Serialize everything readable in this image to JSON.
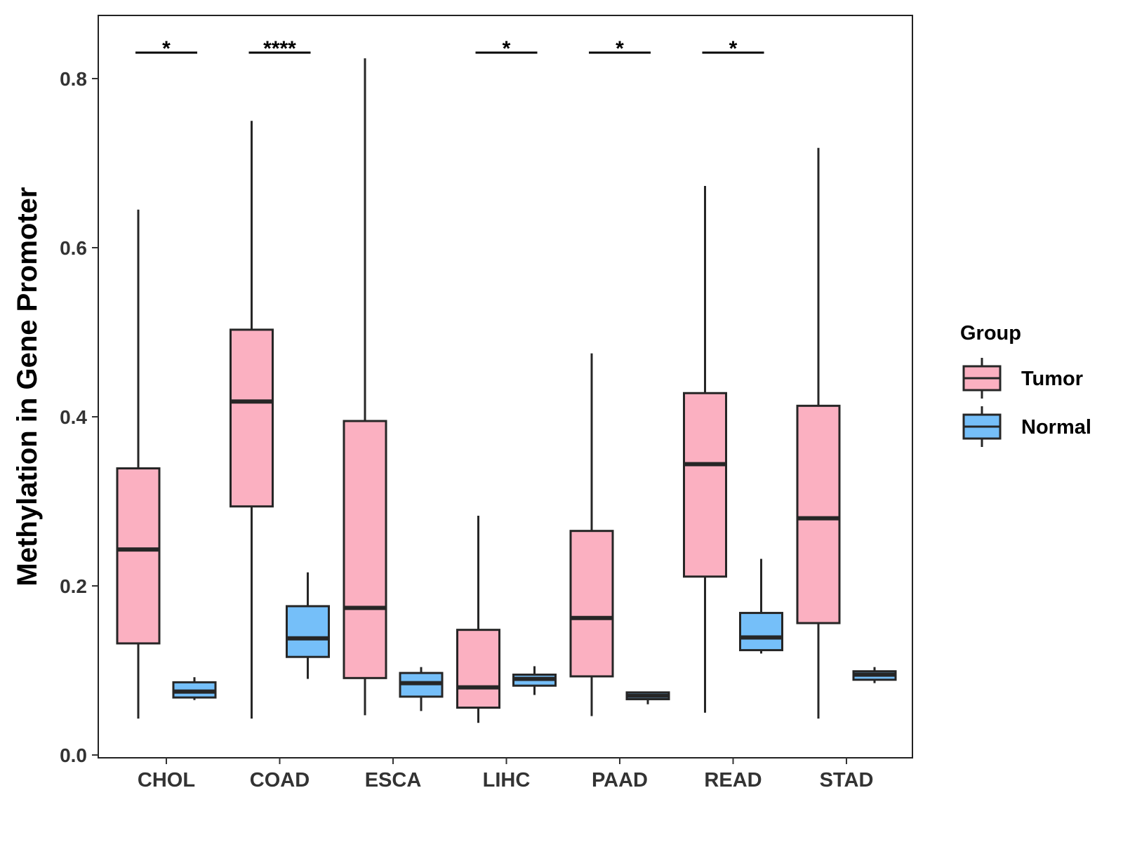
{
  "chart_data": {
    "type": "boxplot",
    "title": "",
    "xlabel": "",
    "ylabel": "Methylation in Gene Promoter",
    "ylim": [
      0,
      0.87
    ],
    "yticks": [
      "0.0",
      "0.2",
      "0.4",
      "0.6",
      "0.8"
    ],
    "ytick_values": [
      0.0,
      0.2,
      0.4,
      0.6,
      0.8
    ],
    "grid": false,
    "categories": [
      "CHOL",
      "COAD",
      "ESCA",
      "LIHC",
      "PAAD",
      "READ",
      "STAD"
    ],
    "legend": {
      "title": "Group",
      "position": "right",
      "entries": [
        "Tumor",
        "Normal"
      ]
    },
    "series": [
      {
        "name": "Tumor",
        "color": "#FBB0C1",
        "boxes": [
          {
            "category": "CHOL",
            "min": 0.043,
            "q1": 0.132,
            "median": 0.243,
            "q3": 0.339,
            "max": 0.645
          },
          {
            "category": "COAD",
            "min": 0.043,
            "q1": 0.294,
            "median": 0.418,
            "q3": 0.503,
            "max": 0.75
          },
          {
            "category": "ESCA",
            "min": 0.047,
            "q1": 0.091,
            "median": 0.174,
            "q3": 0.395,
            "max": 0.824
          },
          {
            "category": "LIHC",
            "min": 0.038,
            "q1": 0.056,
            "median": 0.08,
            "q3": 0.148,
            "max": 0.283
          },
          {
            "category": "PAAD",
            "min": 0.046,
            "q1": 0.093,
            "median": 0.162,
            "q3": 0.265,
            "max": 0.475
          },
          {
            "category": "READ",
            "min": 0.05,
            "q1": 0.211,
            "median": 0.344,
            "q3": 0.428,
            "max": 0.673
          },
          {
            "category": "STAD",
            "min": 0.043,
            "q1": 0.156,
            "median": 0.28,
            "q3": 0.413,
            "max": 0.718
          }
        ]
      },
      {
        "name": "Normal",
        "color": "#75BFF9",
        "boxes": [
          {
            "category": "CHOL",
            "min": 0.065,
            "q1": 0.068,
            "median": 0.075,
            "q3": 0.086,
            "max": 0.092
          },
          {
            "category": "COAD",
            "min": 0.09,
            "q1": 0.116,
            "median": 0.138,
            "q3": 0.176,
            "max": 0.216
          },
          {
            "category": "ESCA",
            "min": 0.052,
            "q1": 0.069,
            "median": 0.085,
            "q3": 0.097,
            "max": 0.104
          },
          {
            "category": "LIHC",
            "min": 0.071,
            "q1": 0.082,
            "median": 0.09,
            "q3": 0.095,
            "max": 0.105
          },
          {
            "category": "PAAD",
            "min": 0.06,
            "q1": 0.066,
            "median": 0.07,
            "q3": 0.074,
            "max": 0.075
          },
          {
            "category": "READ",
            "min": 0.12,
            "q1": 0.124,
            "median": 0.139,
            "q3": 0.168,
            "max": 0.232
          },
          {
            "category": "STAD",
            "min": 0.085,
            "q1": 0.089,
            "median": 0.095,
            "q3": 0.099,
            "max": 0.104
          }
        ]
      }
    ],
    "significance": [
      {
        "category": "CHOL",
        "label": "*"
      },
      {
        "category": "COAD",
        "label": "****"
      },
      {
        "category": "LIHC",
        "label": "*"
      },
      {
        "category": "PAAD",
        "label": "*"
      },
      {
        "category": "READ",
        "label": "*"
      }
    ]
  }
}
